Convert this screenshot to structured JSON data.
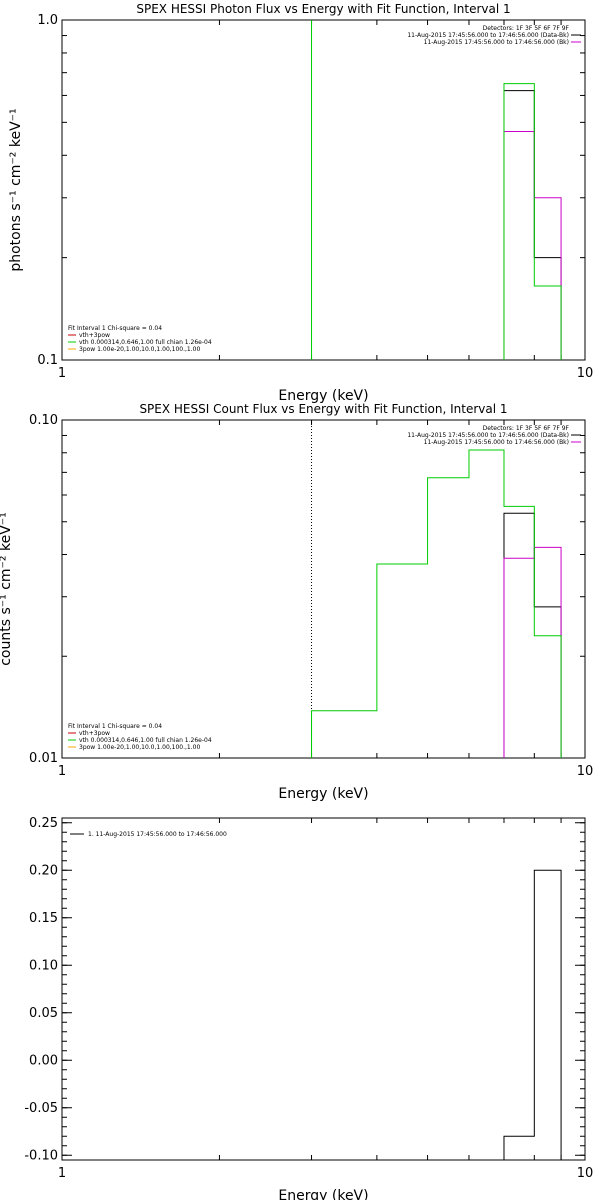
{
  "colors": {
    "data": "#000000",
    "model": "#cc00cc",
    "fit": "#00cc00",
    "pileup": "#cc0000",
    "extra": "#ffaa00"
  },
  "chart_data": [
    {
      "type": "line",
      "title": "SPEX HESSI Photon Flux vs Energy with Fit Function, Interval 1",
      "xlabel": "Energy (keV)",
      "ylabel": "photons s⁻¹ cm⁻² keV⁻¹",
      "xscale": "log",
      "yscale": "log",
      "xlim": [
        1,
        10
      ],
      "ylim": [
        0.1,
        1.0
      ],
      "x_ticklabels": [
        {
          "v": 1,
          "t": "1"
        },
        {
          "v": 10,
          "t": "10"
        }
      ],
      "y_ticklabels": [
        {
          "v": 0.1,
          "t": "0.1"
        },
        {
          "v": 1.0,
          "t": "1.0"
        }
      ],
      "vline": 3,
      "vline_style": "solid",
      "legend_top": [
        "Detectors: 1F 3F 5F 6F 7F 9F",
        "11-Aug-2015 17:45:56.000 to 17:46:56.000 (Data-Bk)",
        "11-Aug-2015 17:45:56.000 to 17:46:56.000 (Bk)"
      ],
      "legend_bottom": [
        "Fit Interval  1    Chi-square = 0.04",
        "vth+3pow",
        "vth 0.000314,0.646,1.00  full chian 1.26e-04",
        "3pow 1.00e-20,1.00,10.0,1.00,100.,1.00"
      ],
      "series": [
        {
          "color_key": "data",
          "edges": [
            7,
            8,
            9
          ],
          "values": [
            0.62,
            0.2
          ]
        },
        {
          "color_key": "model",
          "edges": [
            7,
            8,
            9
          ],
          "values": [
            0.47,
            0.3
          ]
        },
        {
          "color_key": "fit",
          "edges": [
            7,
            8,
            9
          ],
          "values": [
            0.65,
            0.165
          ]
        }
      ]
    },
    {
      "type": "line",
      "title": "SPEX HESSI Count Flux vs Energy with Fit Function, Interval 1",
      "xlabel": "Energy (keV)",
      "ylabel": "counts s⁻¹ cm⁻² keV⁻¹",
      "xscale": "log",
      "yscale": "log",
      "xlim": [
        1,
        10
      ],
      "ylim": [
        0.01,
        0.1
      ],
      "x_ticklabels": [
        {
          "v": 1,
          "t": "1"
        },
        {
          "v": 10,
          "t": "10"
        }
      ],
      "y_ticklabels": [
        {
          "v": 0.01,
          "t": "0.01"
        },
        {
          "v": 0.1,
          "t": "0.10"
        }
      ],
      "vline": 3,
      "vline_style": "dotted",
      "legend_top": [
        "Detectors: 1F 3F 5F 6F 7F 9F",
        "11-Aug-2015 17:45:56.000 to 17:46:56.000 (Data-Bk)",
        "11-Aug-2015 17:45:56.000 to 17:46:56.000 (Bk)"
      ],
      "legend_bottom": [
        "Fit Interval  1    Chi-square = 0.04",
        "vth+3pow",
        "vth 0.000314,0.646,1.00  full chian 1.26e-04",
        "3pow 1.00e-20,1.00,10.0,1.00,100.,1.00"
      ],
      "series": [
        {
          "color_key": "data",
          "edges": [
            7,
            8,
            9
          ],
          "values": [
            0.053,
            0.028
          ]
        },
        {
          "color_key": "model",
          "edges": [
            7,
            8,
            9
          ],
          "values": [
            0.039,
            0.042
          ]
        },
        {
          "color_key": "fit",
          "edges": [
            3,
            4,
            5,
            6,
            7,
            8,
            9
          ],
          "values": [
            0.0138,
            0.0375,
            0.0675,
            0.0815,
            0.0555,
            0.023
          ]
        }
      ]
    },
    {
      "type": "line",
      "title": "",
      "xlabel": "Energy (keV)",
      "ylabel": "",
      "xscale": "log",
      "yscale": "linear",
      "xlim": [
        1,
        10
      ],
      "ylim": [
        -0.105,
        0.255
      ],
      "x_ticklabels": [
        {
          "v": 1,
          "t": "1"
        },
        {
          "v": 10,
          "t": "10"
        }
      ],
      "y_ticklabels": [
        {
          "v": 0.25,
          "t": "0.25"
        },
        {
          "v": 0.2,
          "t": "0.20"
        },
        {
          "v": 0.15,
          "t": "0.15"
        },
        {
          "v": 0.1,
          "t": "0.10"
        },
        {
          "v": 0.05,
          "t": "0.05"
        },
        {
          "v": 0.0,
          "t": "0.00"
        },
        {
          "v": -0.05,
          "t": "-0.05"
        },
        {
          "v": -0.1,
          "t": "-0.10"
        }
      ],
      "vline": null,
      "legend_series": "1. 11-Aug-2015 17:45:56.000 to 17:46:56.000",
      "series": [
        {
          "color_key": "data",
          "edges": [
            7,
            8,
            9
          ],
          "values": [
            -0.08,
            0.2
          ]
        }
      ]
    }
  ]
}
